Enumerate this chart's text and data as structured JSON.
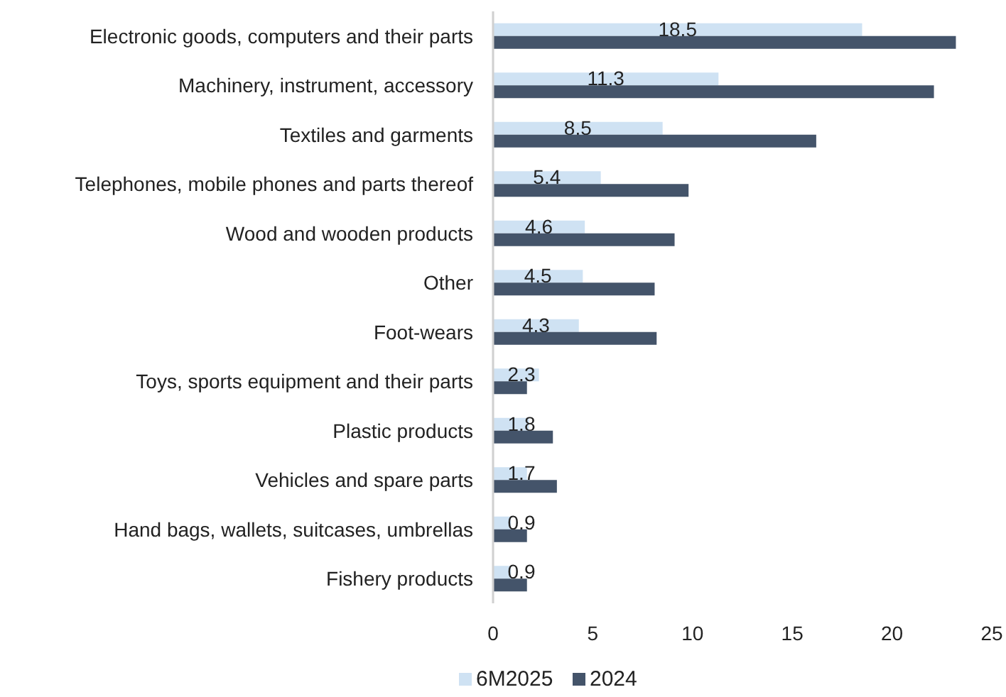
{
  "chart_data": {
    "type": "bar",
    "orientation": "horizontal",
    "categories": [
      "Electronic goods, computers and their parts",
      "Machinery, instrument, accessory",
      "Textiles and garments",
      "Telephones, mobile phones and parts thereof",
      "Wood and wooden products",
      "Other",
      "Foot-wears",
      "Toys, sports equipment and their parts",
      "Plastic products",
      "Vehicles and spare parts",
      "Hand bags, wallets, suitcases, umbrellas",
      "Fishery products"
    ],
    "series": [
      {
        "name": "6M2025",
        "color": "#cfe2f3",
        "values": [
          18.5,
          11.3,
          8.5,
          5.4,
          4.6,
          4.5,
          4.3,
          2.3,
          1.8,
          1.7,
          0.9,
          0.9
        ],
        "value_labels": [
          "18.5",
          "11.3",
          "8.5",
          "5.4",
          "4.6",
          "4.5",
          "4.3",
          "2.3",
          "1.8",
          "1.7",
          "0.9",
          "0.9"
        ]
      },
      {
        "name": "2024",
        "color": "#44546a",
        "values": [
          23.2,
          22.1,
          16.2,
          9.8,
          9.1,
          8.1,
          8.2,
          1.7,
          3.0,
          3.2,
          1.7,
          1.7
        ]
      }
    ],
    "xlim": [
      0,
      25
    ],
    "xticks": [
      0,
      5,
      10,
      15,
      20,
      25
    ],
    "grid": false,
    "legend": "bottom"
  }
}
